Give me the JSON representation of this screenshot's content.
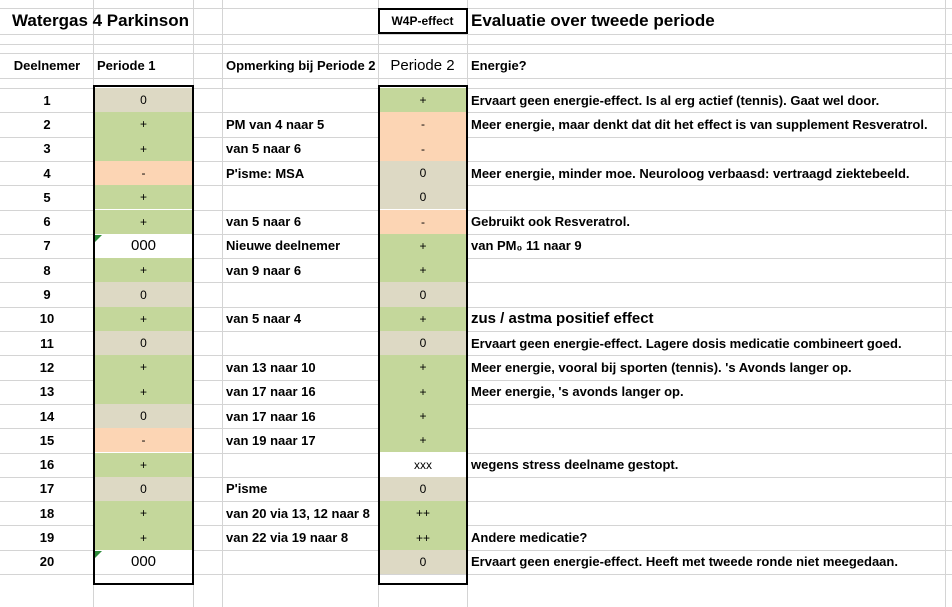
{
  "title": "Watergas 4 Parkinson",
  "effect_label": "W4P-effect",
  "evaluation_title": "Evaluatie over tweede periode",
  "headers": {
    "participant": "Deelnemer",
    "period1": "Periode 1",
    "remark": "Opmerking bij Periode 2",
    "period2": "Periode 2",
    "energy": "Energie?"
  },
  "colors": {
    "positive": "#c4d79b",
    "negative": "#fcd5b4",
    "neutral": "#ddd9c4",
    "none": "#ffffff"
  },
  "rows": [
    {
      "num": "1",
      "p1": "0",
      "p1c": "neutral",
      "remark": "",
      "p2": "+",
      "p2c": "positive",
      "energy": "Ervaart geen energie-effect. Is al erg actief (tennis). Gaat wel door."
    },
    {
      "num": "2",
      "p1": "+",
      "p1c": "positive",
      "remark": "PM van 4 naar 5",
      "p2": "-",
      "p2c": "negative",
      "energy": "Meer energie, maar denkt dat dit het effect is van supplement Resveratrol."
    },
    {
      "num": "3",
      "p1": "+",
      "p1c": "positive",
      "remark": "van 5 naar 6",
      "p2": "-",
      "p2c": "negative",
      "energy": ""
    },
    {
      "num": "4",
      "p1": "-",
      "p1c": "negative",
      "remark": "P'isme: MSA",
      "p2": "0",
      "p2c": "neutral",
      "energy": "Meer energie, minder moe. Neuroloog verbaasd: vertraagd ziektebeeld."
    },
    {
      "num": "5",
      "p1": "+",
      "p1c": "positive",
      "remark": "",
      "p2": "0",
      "p2c": "neutral",
      "energy": ""
    },
    {
      "num": "6",
      "p1": "+",
      "p1c": "positive",
      "remark": "van 5 naar 6",
      "p2": "-",
      "p2c": "negative",
      "energy": "Gebruikt ook Resveratrol."
    },
    {
      "num": "7",
      "p1": "000",
      "p1c": "none",
      "remark": "Nieuwe deelnemer",
      "p2": "+",
      "p2c": "positive",
      "energy": "van PM₀ 11 naar 9",
      "p1big": true,
      "flag": true
    },
    {
      "num": "8",
      "p1": "+",
      "p1c": "positive",
      "remark": "van 9 naar 6",
      "p2": "+",
      "p2c": "positive",
      "energy": ""
    },
    {
      "num": "9",
      "p1": "0",
      "p1c": "neutral",
      "remark": "",
      "p2": "0",
      "p2c": "neutral",
      "energy": ""
    },
    {
      "num": "10",
      "p1": "+",
      "p1c": "positive",
      "remark": "van 5 naar 4",
      "p2": "+",
      "p2c": "positive",
      "energy": "zus / astma positief effect",
      "emph": true
    },
    {
      "num": "11",
      "p1": "0",
      "p1c": "neutral",
      "remark": "",
      "p2": "0",
      "p2c": "neutral",
      "energy": "Ervaart geen energie-effect. Lagere dosis medicatie combineert goed."
    },
    {
      "num": "12",
      "p1": "+",
      "p1c": "positive",
      "remark": "van 13 naar 10",
      "p2": "+",
      "p2c": "positive",
      "energy": "Meer energie, vooral bij sporten (tennis). 's Avonds langer op."
    },
    {
      "num": "13",
      "p1": "+",
      "p1c": "positive",
      "remark": "van 17 naar 16",
      "p2": "+",
      "p2c": "positive",
      "energy": "Meer energie, 's avonds langer op."
    },
    {
      "num": "14",
      "p1": "0",
      "p1c": "neutral",
      "remark": "van 17 naar 16",
      "p2": "+",
      "p2c": "positive",
      "energy": ""
    },
    {
      "num": "15",
      "p1": "-",
      "p1c": "negative",
      "remark": "van 19 naar 17",
      "p2": "+",
      "p2c": "positive",
      "energy": ""
    },
    {
      "num": "16",
      "p1": "+",
      "p1c": "positive",
      "remark": "",
      "p2": "xxx",
      "p2c": "none",
      "energy": "wegens stress deelname gestopt."
    },
    {
      "num": "17",
      "p1": "0",
      "p1c": "neutral",
      "remark": "P'isme",
      "p2": "0",
      "p2c": "neutral",
      "energy": ""
    },
    {
      "num": "18",
      "p1": "+",
      "p1c": "positive",
      "remark": "van 20 via 13, 12 naar 8",
      "p2": "++",
      "p2c": "positive",
      "energy": ""
    },
    {
      "num": "19",
      "p1": "+",
      "p1c": "positive",
      "remark": "van 22 via 19 naar 8",
      "p2": "++",
      "p2c": "positive",
      "energy": "Andere medicatie?"
    },
    {
      "num": "20",
      "p1": "000",
      "p1c": "none",
      "remark": "",
      "p2": "0",
      "p2c": "neutral",
      "energy": "Ervaart geen energie-effect. Heeft met tweede ronde niet meegedaan.",
      "p1big": true,
      "flag": true
    }
  ]
}
